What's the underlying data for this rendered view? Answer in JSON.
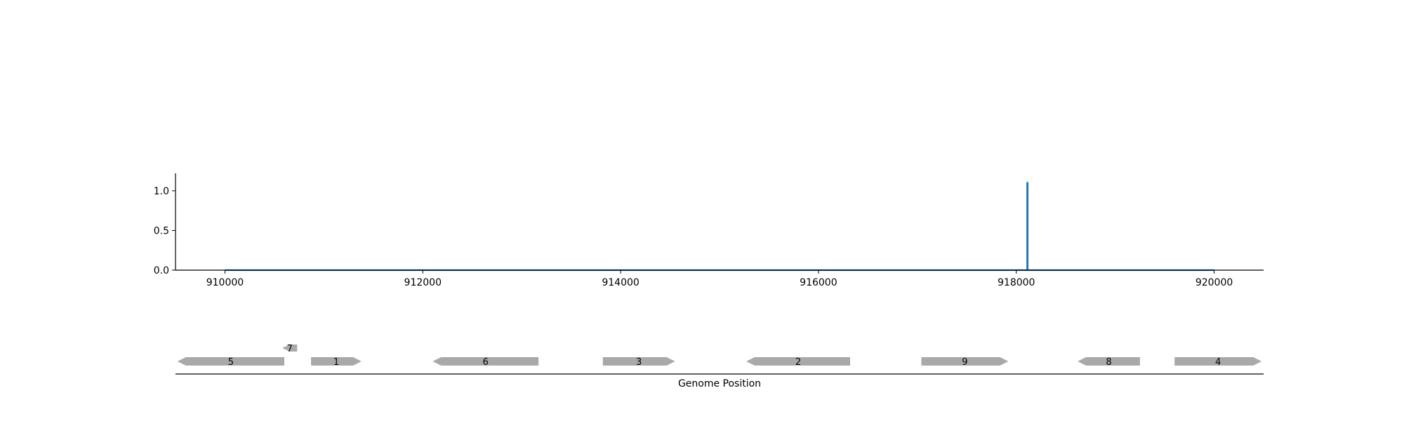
{
  "chart_data": {
    "type": "line",
    "title": "",
    "xlabel": "Genome Position",
    "ylabel": "",
    "xlim": [
      909500,
      920500
    ],
    "ylim": [
      0,
      1.22
    ],
    "x_ticks": [
      910000,
      912000,
      914000,
      916000,
      918000,
      920000
    ],
    "y_ticks": [
      0.0,
      0.5,
      1.0
    ],
    "y_tick_labels": [
      "0.0",
      "0.5",
      "1.0"
    ],
    "grid": false,
    "series": [
      {
        "color": "#1f77b4",
        "x": [
          910000,
          918110,
          918110,
          918115,
          918115,
          920000
        ],
        "y": [
          0,
          0,
          1.1,
          1.1,
          0,
          0
        ]
      }
    ],
    "genes": [
      {
        "label": "5",
        "start": 910600,
        "end": 909520,
        "row": 0
      },
      {
        "label": "7",
        "start": 910730,
        "end": 910580,
        "row": 1
      },
      {
        "label": "1",
        "start": 910870,
        "end": 911380,
        "row": 0
      },
      {
        "label": "6",
        "start": 913170,
        "end": 912100,
        "row": 0
      },
      {
        "label": "3",
        "start": 913820,
        "end": 914550,
        "row": 0
      },
      {
        "label": "2",
        "start": 916320,
        "end": 915270,
        "row": 0
      },
      {
        "label": "9",
        "start": 917040,
        "end": 917920,
        "row": 0
      },
      {
        "label": "8",
        "start": 919250,
        "end": 918620,
        "row": 0
      },
      {
        "label": "4",
        "start": 919600,
        "end": 920480,
        "row": 0
      }
    ],
    "gene_color": "#a9a9a9"
  }
}
